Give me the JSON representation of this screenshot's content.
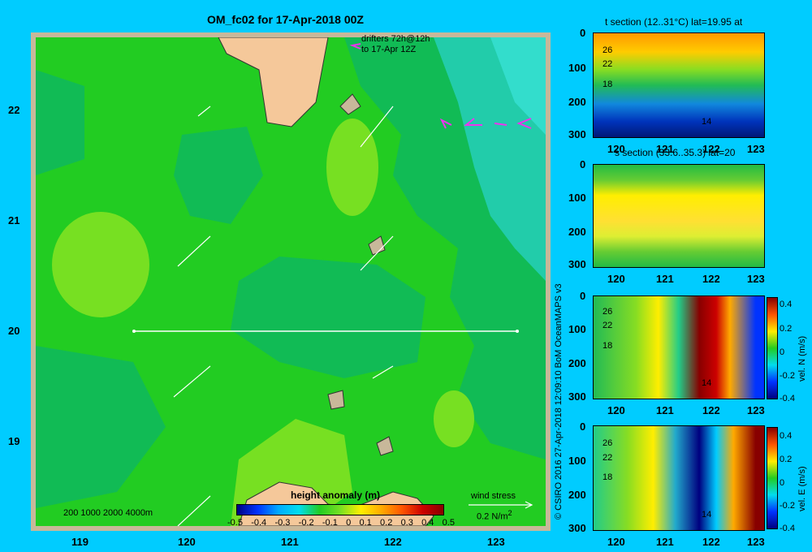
{
  "map": {
    "title": "OM_fc02 for 17-Apr-2018 00Z",
    "drifters_line1": "drifters 72h@12h",
    "drifters_line2": "to 17-Apr 12Z",
    "x_ticks": [
      "119",
      "120",
      "121",
      "122",
      "123"
    ],
    "y_ticks": [
      "22",
      "21",
      "20",
      "19"
    ],
    "depth_legend": "200  1000  2000  4000m",
    "colorbar_title": "height anomaly  (m)",
    "colorbar_ticks": [
      "-0.5",
      "-0.4",
      "-0.3",
      "-0.2",
      "-0.1",
      "0",
      "0.1",
      "0.2",
      "0.3",
      "0.4",
      "0.5"
    ],
    "wind_stress_label": "wind stress",
    "wind_stress_unit": "0.2 N/m",
    "wind_stress_sup": "2"
  },
  "credit": "© CSIRO 2016   27-Apr-2018 12:09:10 BoM OceanMAPS v3",
  "panels": [
    {
      "title": "t section (12..31°C) lat=19.95 at",
      "y_ticks": [
        "0",
        "100",
        "200",
        "300"
      ],
      "x_ticks": [
        "120",
        "121",
        "122",
        "123"
      ],
      "contour_labels": [
        "26",
        "22",
        "18",
        "14"
      ]
    },
    {
      "title": "s section (33.6..35.3) lat=20",
      "y_ticks": [
        "0",
        "100",
        "200",
        "300"
      ],
      "x_ticks": [
        "120",
        "121",
        "122",
        "123"
      ]
    },
    {
      "title": "",
      "y_ticks": [
        "0",
        "100",
        "200",
        "300"
      ],
      "x_ticks": [
        "120",
        "121",
        "122",
        "123"
      ],
      "contour_labels": [
        "26",
        "22",
        "18",
        "14"
      ],
      "cbar_ticks": [
        "0.4",
        "0.2",
        "0",
        "-0.2",
        "-0.4"
      ],
      "cbar_label": "vel. N  (m/s)"
    },
    {
      "title": "",
      "y_ticks": [
        "0",
        "100",
        "200",
        "300"
      ],
      "x_ticks": [
        "120",
        "121",
        "122",
        "123"
      ],
      "contour_labels": [
        "26",
        "22",
        "18",
        "14"
      ],
      "cbar_ticks": [
        "0.4",
        "0.2",
        "0",
        "-0.2",
        "-0.4"
      ],
      "cbar_label": "vel. E  (m/s)"
    }
  ],
  "chart_data": [
    {
      "type": "heatmap",
      "title": "OM_fc02 for 17-Apr-2018 00Z",
      "variable": "height anomaly (m)",
      "xlim": [
        118.5,
        123.5
      ],
      "ylim": [
        18.3,
        22.7
      ],
      "colorbar_range": [
        -0.5,
        0.5
      ],
      "section_line": {
        "lat": 20,
        "lon": [
          119.5,
          123.2
        ]
      }
    },
    {
      "type": "heatmap",
      "title": "t section (12..31°C) lat=19.95 at",
      "xlim": [
        119.5,
        123.2
      ],
      "ylim": [
        300,
        0
      ],
      "contour_levels": [
        26,
        22,
        18,
        14
      ]
    },
    {
      "type": "heatmap",
      "title": "s section (33.6..35.3) lat=20",
      "xlim": [
        119.5,
        123.2
      ],
      "ylim": [
        300,
        0
      ]
    },
    {
      "type": "heatmap",
      "variable": "vel. N (m/s)",
      "xlim": [
        119.5,
        123.2
      ],
      "ylim": [
        300,
        0
      ],
      "colorbar_range": [
        -0.4,
        0.4
      ]
    },
    {
      "type": "heatmap",
      "variable": "vel. E (m/s)",
      "xlim": [
        119.5,
        123.2
      ],
      "ylim": [
        300,
        0
      ],
      "colorbar_range": [
        -0.4,
        0.4
      ]
    }
  ]
}
